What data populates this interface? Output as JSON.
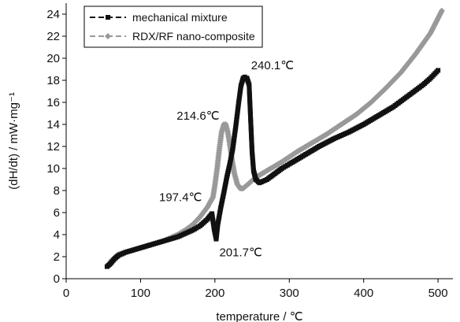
{
  "chart_data": {
    "type": "line",
    "xlabel": "temperature / ℃",
    "ylabel": "(dH/dt)  / mW·mg⁻¹",
    "xlim": [
      0,
      520
    ],
    "ylim": [
      0,
      25
    ],
    "x_ticks": [
      0,
      100,
      200,
      300,
      400,
      500
    ],
    "y_ticks": [
      0,
      2,
      4,
      6,
      8,
      10,
      12,
      14,
      16,
      18,
      20,
      22,
      24
    ],
    "grid": false,
    "legend_position": "top-left",
    "series": [
      {
        "name": "mechanical mixture",
        "color": "#111111",
        "marker": "square",
        "dash": "dashed",
        "points": [
          [
            55,
            1.1
          ],
          [
            60,
            1.4
          ],
          [
            65,
            1.8
          ],
          [
            70,
            2.1
          ],
          [
            80,
            2.4
          ],
          [
            90,
            2.6
          ],
          [
            100,
            2.8
          ],
          [
            110,
            3.0
          ],
          [
            120,
            3.2
          ],
          [
            130,
            3.4
          ],
          [
            140,
            3.6
          ],
          [
            150,
            3.8
          ],
          [
            160,
            4.1
          ],
          [
            170,
            4.4
          ],
          [
            180,
            4.8
          ],
          [
            190,
            5.4
          ],
          [
            196,
            5.9
          ],
          [
            199,
            4.5
          ],
          [
            201.7,
            3.6
          ],
          [
            204,
            5.0
          ],
          [
            208,
            6.5
          ],
          [
            212,
            7.8
          ],
          [
            216,
            9.2
          ],
          [
            220,
            10.4
          ],
          [
            224,
            11.8
          ],
          [
            228,
            13.8
          ],
          [
            232,
            16.0
          ],
          [
            235,
            17.5
          ],
          [
            238,
            18.2
          ],
          [
            240.1,
            18.3
          ],
          [
            243,
            18.2
          ],
          [
            246,
            17.6
          ],
          [
            248,
            14.5
          ],
          [
            250,
            11.5
          ],
          [
            252,
            9.8
          ],
          [
            255,
            9.0
          ],
          [
            260,
            8.7
          ],
          [
            270,
            9.0
          ],
          [
            280,
            9.5
          ],
          [
            290,
            10.0
          ],
          [
            300,
            10.4
          ],
          [
            320,
            11.2
          ],
          [
            340,
            12.0
          ],
          [
            360,
            12.7
          ],
          [
            380,
            13.3
          ],
          [
            400,
            14.0
          ],
          [
            420,
            14.8
          ],
          [
            440,
            15.6
          ],
          [
            460,
            16.6
          ],
          [
            480,
            17.6
          ],
          [
            490,
            18.2
          ],
          [
            500,
            18.9
          ]
        ]
      },
      {
        "name": "RDX/RF nano-composite",
        "color": "#999999",
        "marker": "diamond",
        "dash": "dashed",
        "points": [
          [
            60,
            1.6
          ],
          [
            65,
            1.9
          ],
          [
            70,
            2.2
          ],
          [
            80,
            2.4
          ],
          [
            90,
            2.6
          ],
          [
            100,
            2.8
          ],
          [
            110,
            3.0
          ],
          [
            120,
            3.2
          ],
          [
            130,
            3.4
          ],
          [
            140,
            3.7
          ],
          [
            150,
            4.0
          ],
          [
            160,
            4.4
          ],
          [
            170,
            4.9
          ],
          [
            180,
            5.6
          ],
          [
            190,
            6.5
          ],
          [
            197.4,
            7.4
          ],
          [
            200,
            8.5
          ],
          [
            203,
            10.0
          ],
          [
            206,
            11.8
          ],
          [
            209,
            13.3
          ],
          [
            212,
            14.0
          ],
          [
            214.6,
            14.0
          ],
          [
            217,
            13.4
          ],
          [
            220,
            12.2
          ],
          [
            223,
            10.8
          ],
          [
            226,
            9.6
          ],
          [
            230,
            8.6
          ],
          [
            234,
            8.2
          ],
          [
            238,
            8.2
          ],
          [
            245,
            8.6
          ],
          [
            255,
            9.2
          ],
          [
            270,
            9.8
          ],
          [
            290,
            10.6
          ],
          [
            310,
            11.5
          ],
          [
            330,
            12.3
          ],
          [
            350,
            13.1
          ],
          [
            370,
            14.0
          ],
          [
            390,
            14.9
          ],
          [
            410,
            16.0
          ],
          [
            430,
            17.3
          ],
          [
            450,
            18.7
          ],
          [
            470,
            20.4
          ],
          [
            490,
            22.3
          ],
          [
            505,
            24.3
          ]
        ]
      }
    ],
    "annotations": [
      {
        "text": "240.1℃",
        "x": 240.1,
        "y": 18.3,
        "anchor": "start"
      },
      {
        "text": "214.6℃",
        "x": 214.6,
        "y": 14.0,
        "anchor": "end"
      },
      {
        "text": "197.4℃",
        "x": 197.4,
        "y": 7.4,
        "anchor": "end"
      },
      {
        "text": "201.7℃",
        "x": 201.7,
        "y": 3.6,
        "anchor": "start"
      }
    ]
  }
}
